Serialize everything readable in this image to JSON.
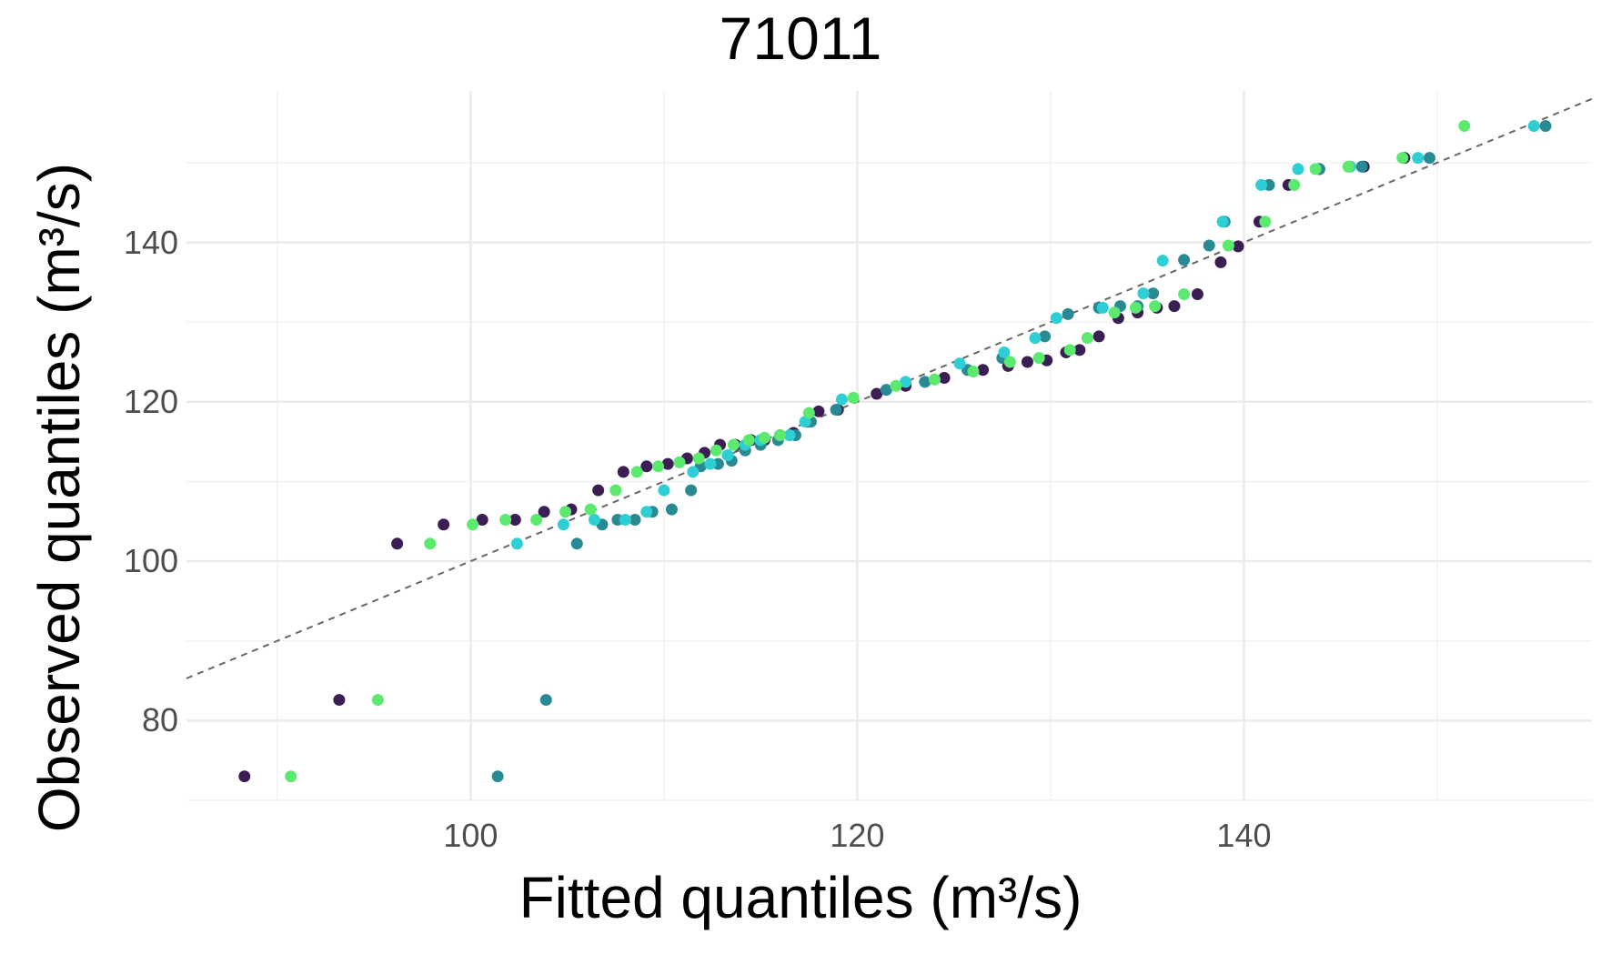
{
  "chart_data": {
    "type": "scatter",
    "title": "71011",
    "xlabel": "Fitted quantiles (m³/s)",
    "ylabel": "Observed quantiles (m³/s)",
    "xlim": [
      85.3,
      158
    ],
    "ylim": [
      70,
      159
    ],
    "x_ticks": [
      "100",
      "120",
      "140"
    ],
    "y_ticks": [
      "80",
      "100",
      "120",
      "140"
    ],
    "x_tick_values": [
      100,
      120,
      140
    ],
    "y_tick_values": [
      80,
      100,
      120,
      140
    ],
    "grid": true,
    "reference_line": {
      "type": "1:1",
      "style": "dashed",
      "color": "#666666"
    },
    "colors": [
      "#3b1e53",
      "#2a8a94",
      "#2ecfd4",
      "#5cea6e"
    ],
    "series": [
      {
        "color": "#3b1e53",
        "points": [
          [
            88.3,
            73
          ],
          [
            93.2,
            82.6
          ],
          [
            96.2,
            102.2
          ],
          [
            98.6,
            104.6
          ],
          [
            100.6,
            105.2
          ],
          [
            102.3,
            105.2
          ],
          [
            103.8,
            106.2
          ],
          [
            105.2,
            106.5
          ],
          [
            106.6,
            108.9
          ],
          [
            107.9,
            111.2
          ],
          [
            109.1,
            111.9
          ],
          [
            110.2,
            112.2
          ],
          [
            111.2,
            112.9
          ],
          [
            112.1,
            113.6
          ],
          [
            112.9,
            114.6
          ],
          [
            113.7,
            114.6
          ],
          [
            114.5,
            115.2
          ],
          [
            115.2,
            115.2
          ],
          [
            116,
            115.8
          ],
          [
            116.7,
            116.1
          ],
          [
            117.4,
            117.5
          ],
          [
            118,
            118.8
          ],
          [
            119,
            119
          ],
          [
            121,
            121
          ],
          [
            122.5,
            122
          ],
          [
            124.5,
            123
          ],
          [
            126.5,
            124
          ],
          [
            127.8,
            124.5
          ],
          [
            128.8,
            125
          ],
          [
            129.8,
            125.2
          ],
          [
            130.8,
            126.2
          ],
          [
            131.5,
            126.5
          ],
          [
            132.5,
            128.2
          ],
          [
            133.5,
            130.5
          ],
          [
            134.5,
            131.2
          ],
          [
            135.5,
            131.8
          ],
          [
            136.4,
            132
          ],
          [
            137.6,
            133.5
          ],
          [
            138.8,
            137.5
          ],
          [
            139.7,
            139.5
          ],
          [
            140.8,
            142.6
          ],
          [
            142.3,
            147.2
          ],
          [
            143.9,
            149.2
          ],
          [
            146.2,
            149.5
          ],
          [
            148.3,
            150.6
          ]
        ]
      },
      {
        "color": "#2a8a94",
        "points": [
          [
            101.4,
            73
          ],
          [
            103.9,
            82.6
          ],
          [
            105.5,
            102.2
          ],
          [
            106.8,
            104.6
          ],
          [
            107.6,
            105.2
          ],
          [
            108.5,
            105.2
          ],
          [
            109.4,
            106.2
          ],
          [
            110.4,
            106.5
          ],
          [
            111.4,
            108.9
          ],
          [
            111.9,
            111.9
          ],
          [
            112.8,
            112.2
          ],
          [
            113.5,
            112.6
          ],
          [
            114.2,
            113.9
          ],
          [
            115,
            114.6
          ],
          [
            115.9,
            115.2
          ],
          [
            116.8,
            115.8
          ],
          [
            117.6,
            117.5
          ],
          [
            118.9,
            119
          ],
          [
            121.5,
            121.5
          ],
          [
            123.5,
            122.5
          ],
          [
            125.7,
            124
          ],
          [
            127.5,
            125.5
          ],
          [
            129.7,
            128.2
          ],
          [
            130.9,
            131
          ],
          [
            132.5,
            131.8
          ],
          [
            133.6,
            132
          ],
          [
            134.5,
            132
          ],
          [
            135.3,
            133.6
          ],
          [
            136.9,
            137.8
          ],
          [
            138.2,
            139.6
          ],
          [
            139,
            142.6
          ],
          [
            141.3,
            147.2
          ],
          [
            143.9,
            149.2
          ],
          [
            146.1,
            149.5
          ],
          [
            149.6,
            150.6
          ],
          [
            155.6,
            154.6
          ]
        ]
      },
      {
        "color": "#2ecfd4",
        "points": [
          [
            102.4,
            102.2
          ],
          [
            104.8,
            104.6
          ],
          [
            106.4,
            105.2
          ],
          [
            108,
            105.2
          ],
          [
            109.1,
            106.2
          ],
          [
            110,
            108.9
          ],
          [
            111.5,
            111.2
          ],
          [
            112.4,
            112.2
          ],
          [
            113.3,
            113.3
          ],
          [
            114.2,
            114.6
          ],
          [
            115,
            115.2
          ],
          [
            116.5,
            115.8
          ],
          [
            117.3,
            117.5
          ],
          [
            119.2,
            120.3
          ],
          [
            122.5,
            122.5
          ],
          [
            125.3,
            124.8
          ],
          [
            127.6,
            126.2
          ],
          [
            129.2,
            128
          ],
          [
            130.3,
            130.5
          ],
          [
            132.7,
            131.8
          ],
          [
            134.8,
            133.6
          ],
          [
            135.8,
            137.7
          ],
          [
            138.9,
            142.6
          ],
          [
            140.9,
            147.2
          ],
          [
            142.8,
            149.2
          ],
          [
            145.5,
            149.5
          ],
          [
            149,
            150.6
          ],
          [
            155,
            154.6
          ]
        ]
      },
      {
        "color": "#5cea6e",
        "points": [
          [
            90.7,
            73
          ],
          [
            95.2,
            82.6
          ],
          [
            97.9,
            102.2
          ],
          [
            100.1,
            104.6
          ],
          [
            101.8,
            105.2
          ],
          [
            103.4,
            105.2
          ],
          [
            104.9,
            106.2
          ],
          [
            106.2,
            106.5
          ],
          [
            107.5,
            108.9
          ],
          [
            108.6,
            111.2
          ],
          [
            109.7,
            111.9
          ],
          [
            110.8,
            112.4
          ],
          [
            111.8,
            112.9
          ],
          [
            112.7,
            113.9
          ],
          [
            113.6,
            114.6
          ],
          [
            114.4,
            115.2
          ],
          [
            115.2,
            115.5
          ],
          [
            116,
            115.8
          ],
          [
            117.5,
            118.6
          ],
          [
            119.8,
            120.5
          ],
          [
            122,
            122
          ],
          [
            124,
            122.8
          ],
          [
            126,
            123.8
          ],
          [
            127.9,
            125
          ],
          [
            129.4,
            125.5
          ],
          [
            131,
            126.5
          ],
          [
            131.9,
            128
          ],
          [
            133.3,
            131.2
          ],
          [
            134.4,
            131.8
          ],
          [
            135.4,
            132
          ],
          [
            136.9,
            133.5
          ],
          [
            139.2,
            139.6
          ],
          [
            141.1,
            142.6
          ],
          [
            142.6,
            147.2
          ],
          [
            143.7,
            149.2
          ],
          [
            145.4,
            149.5
          ],
          [
            148.2,
            150.6
          ],
          [
            151.4,
            154.6
          ]
        ]
      }
    ]
  }
}
